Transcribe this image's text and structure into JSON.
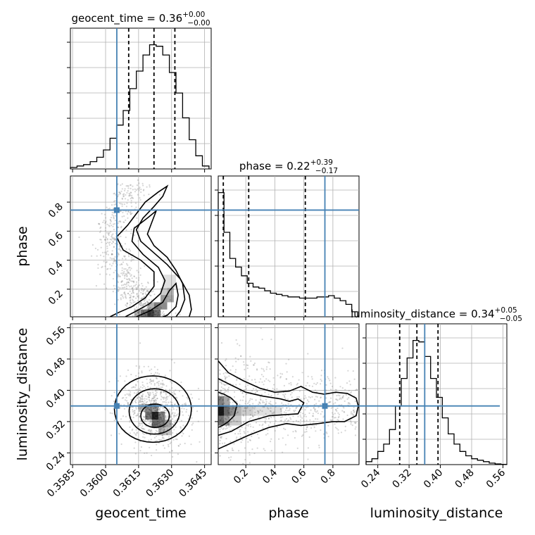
{
  "chart_data": {
    "type": "corner",
    "parameters": [
      "geocent_time",
      "phase",
      "luminosity_distance"
    ],
    "titles": [
      {
        "label": "geocent_time",
        "median": "0.36",
        "plus": "+0.00",
        "minus": "−0.00"
      },
      {
        "label": "phase",
        "median": "0.22",
        "plus": "+0.39",
        "minus": "−0.17"
      },
      {
        "label": "luminosity_distance",
        "median": "0.34",
        "plus": "+0.05",
        "minus": "−0.05"
      }
    ],
    "axis_labels": [
      "geocent_time",
      "phase",
      "luminosity_distance"
    ],
    "ranges": {
      "geocent_time": [
        0.3584,
        0.3648
      ],
      "phase": [
        0.01,
        0.98
      ],
      "luminosity_distance": [
        0.21,
        0.57
      ]
    },
    "ticks": {
      "geocent_time": [
        "0.3585",
        "0.3600",
        "0.3615",
        "0.3630",
        "0.3645"
      ],
      "phase": [
        "0.2",
        "0.4",
        "0.6",
        "0.8"
      ],
      "luminosity_distance": [
        "0.24",
        "0.32",
        "0.40",
        "0.48",
        "0.56"
      ]
    },
    "truths": {
      "geocent_time": 0.36051,
      "phase": 0.745,
      "luminosity_distance": 0.36
    },
    "quantiles": {
      "geocent_time": [
        0.36105,
        0.3622,
        0.36315
      ],
      "phase": [
        0.045,
        0.22,
        0.61
      ],
      "luminosity_distance": [
        0.296,
        0.34,
        0.394
      ]
    },
    "histograms": {
      "geocent_time": {
        "bins": [
          0.3584,
          0.3587,
          0.359,
          0.3593,
          0.3596,
          0.3599,
          0.3602,
          0.3605,
          0.3608,
          0.3611,
          0.3614,
          0.3617,
          0.362,
          0.3623,
          0.3626,
          0.3629,
          0.3632,
          0.3635,
          0.3638,
          0.3641,
          0.3644,
          0.3647
        ],
        "counts": [
          0.01,
          0.02,
          0.03,
          0.05,
          0.08,
          0.13,
          0.21,
          0.3,
          0.4,
          0.55,
          0.67,
          0.78,
          0.85,
          0.84,
          0.78,
          0.66,
          0.52,
          0.35,
          0.2,
          0.09,
          0.02
        ]
      },
      "phase": {
        "bins": [
          0.01,
          0.05,
          0.09,
          0.13,
          0.17,
          0.21,
          0.25,
          0.29,
          0.33,
          0.37,
          0.41,
          0.45,
          0.49,
          0.53,
          0.57,
          0.61,
          0.65,
          0.69,
          0.73,
          0.77,
          0.81,
          0.85,
          0.89,
          0.93,
          0.97
        ],
        "counts": [
          1.0,
          0.68,
          0.47,
          0.4,
          0.33,
          0.27,
          0.24,
          0.23,
          0.21,
          0.19,
          0.18,
          0.17,
          0.16,
          0.16,
          0.15,
          0.15,
          0.15,
          0.16,
          0.16,
          0.17,
          0.15,
          0.13,
          0.1,
          0.04
        ]
      },
      "luminosity_distance": {
        "bins": [
          0.21,
          0.225,
          0.24,
          0.255,
          0.27,
          0.285,
          0.3,
          0.315,
          0.33,
          0.345,
          0.36,
          0.375,
          0.39,
          0.405,
          0.42,
          0.435,
          0.45,
          0.465,
          0.48,
          0.495,
          0.51,
          0.525,
          0.54,
          0.555,
          0.57
        ],
        "counts": [
          0.02,
          0.04,
          0.09,
          0.14,
          0.24,
          0.4,
          0.59,
          0.73,
          0.85,
          0.84,
          0.74,
          0.59,
          0.46,
          0.32,
          0.21,
          0.14,
          0.09,
          0.06,
          0.04,
          0.03,
          0.02,
          0.01,
          0.005,
          0.002
        ]
      }
    },
    "grid": true
  }
}
